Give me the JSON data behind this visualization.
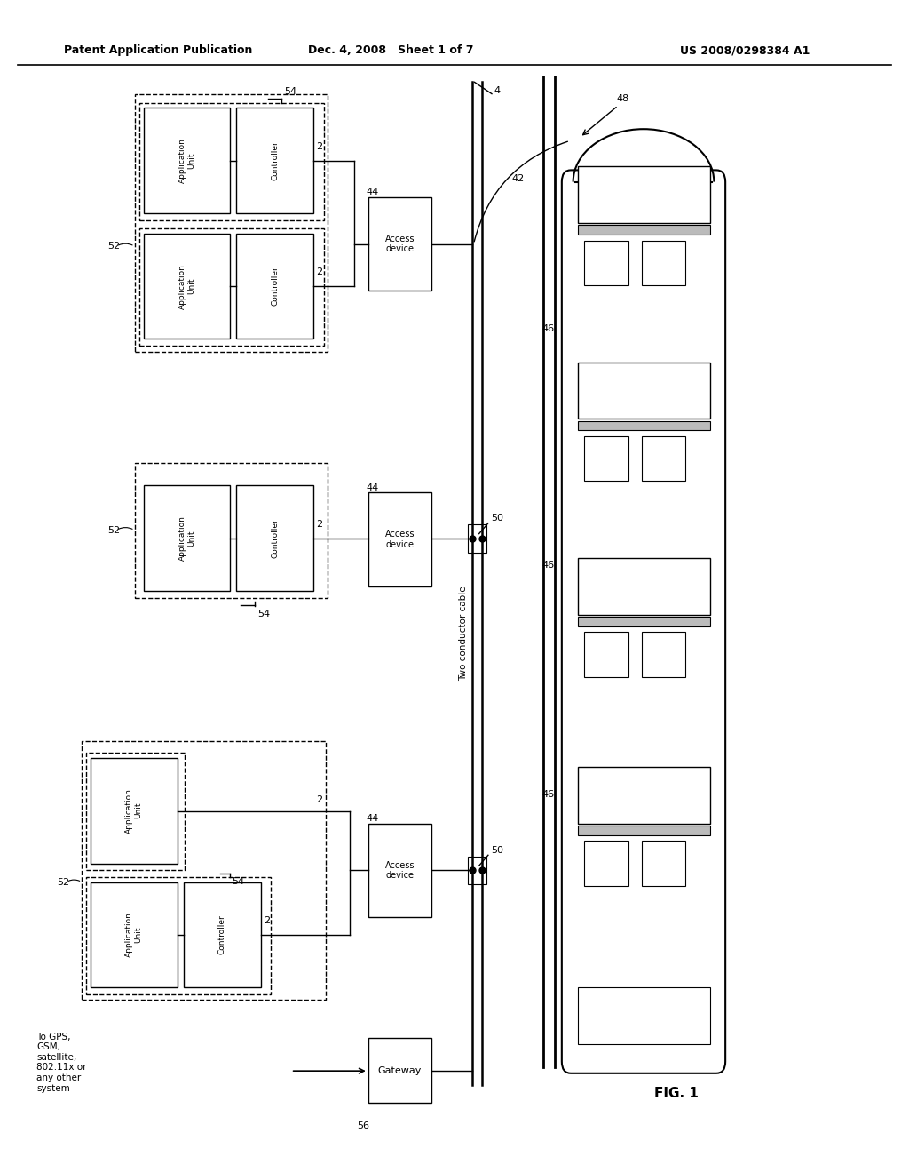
{
  "bg_color": "#ffffff",
  "header_left": "Patent Application Publication",
  "header_mid": "Dec. 4, 2008   Sheet 1 of 7",
  "header_right": "US 2008/0298384 A1",
  "fig_label": "FIG. 1",
  "gps_text": "To GPS,\nGSM,\nsatellite,\n802.11x or\nany other\nsystem",
  "two_cond_label": "Two conductor cable"
}
